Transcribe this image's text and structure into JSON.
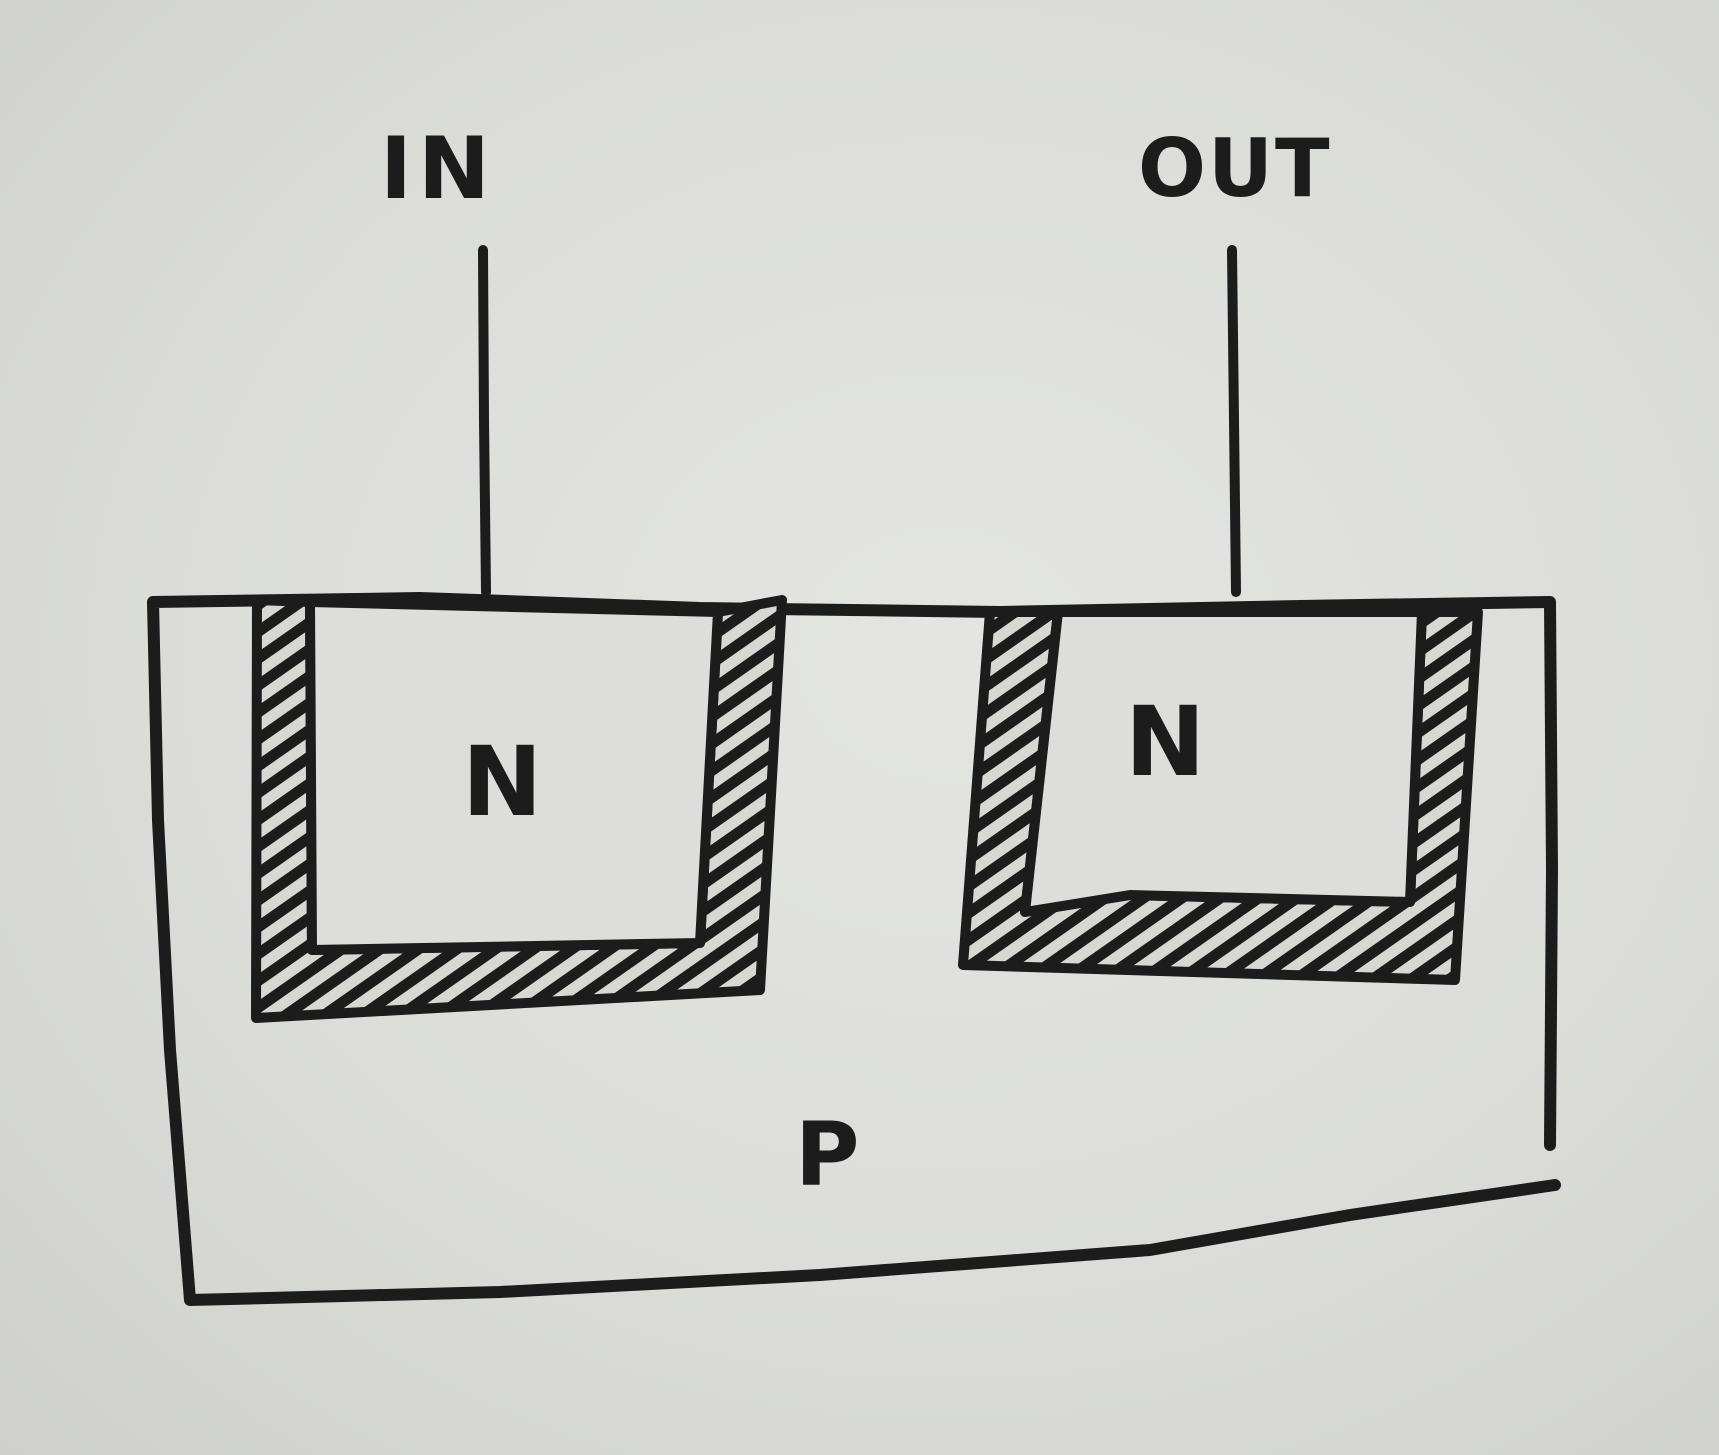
{
  "diagram": {
    "labels": {
      "input": "IN",
      "output": "OUT",
      "left_region": "N",
      "right_region": "N",
      "substrate": "P"
    },
    "colors": {
      "ink": "#1c1c1c",
      "paper": "#dcddda"
    }
  }
}
